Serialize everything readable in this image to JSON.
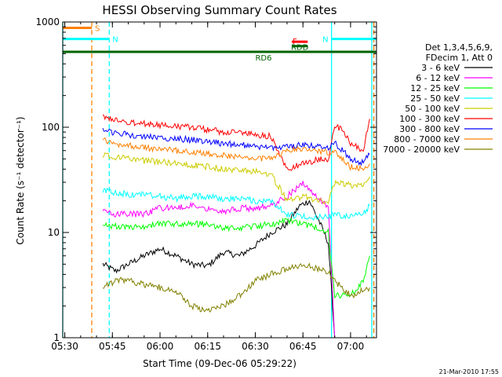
{
  "chart_data": {
    "type": "line",
    "title": "HESSI Observing Summary Count Rates",
    "xlabel": "Start Time (09-Dec-06 05:29:22)",
    "ylabel": "Count Rate (s⁻¹ detector⁻¹)",
    "yscale": "log",
    "xlim": [
      "05:29:22",
      "07:08:10"
    ],
    "ylim": [
      1,
      1000
    ],
    "x_ticks": [
      "05:30",
      "05:45",
      "06:00",
      "06:15",
      "06:30",
      "06:45",
      "07:00"
    ],
    "y_ticks": [
      "1",
      "10",
      "100",
      "1000"
    ],
    "grid": false,
    "legend_position": "right",
    "legend_header": [
      "Det 1,3,4,5,6,9,",
      "FDecim 1, Att 0"
    ],
    "footer_date": "21-Mar-2010 17:55",
    "flags": [
      {
        "label": "S",
        "color": "#ff8000",
        "from": "05:29:22",
        "to": "05:38:30",
        "level": 880
      },
      {
        "label": "N",
        "color": "#00ffff",
        "from": "05:29:22",
        "to": "05:44:00",
        "level": 690
      },
      {
        "label": "N",
        "color": "#00ffff",
        "from": "06:54:00",
        "to": "07:08:10",
        "level": 690
      },
      {
        "label": "F",
        "color": "#ff0000",
        "from": "06:41:30",
        "to": "06:46:30",
        "level": 650
      },
      {
        "label": "RDD",
        "color": "#006400",
        "from": "06:41:30",
        "to": "06:46:30",
        "level": 590
      },
      {
        "label": "RD6",
        "color": "#006400",
        "from": "05:29:22",
        "to": "07:08:10",
        "level": 520
      }
    ],
    "vertical_markers": [
      {
        "time": "05:38:30",
        "color": "#ff8000",
        "style": "dashed"
      },
      {
        "time": "05:44:00",
        "color": "#00ffff",
        "style": "dashed"
      },
      {
        "time": "05:29:22",
        "color": "#00ffff",
        "style": "solid"
      },
      {
        "time": "06:54:00",
        "color": "#00ffff",
        "style": "solid"
      },
      {
        "time": "07:06:40",
        "color": "#00ffff",
        "style": "solid"
      },
      {
        "time": "07:07:20",
        "color": "#ff8000",
        "style": "dashed"
      }
    ],
    "series": [
      {
        "name": "3 - 6 keV",
        "color": "#000000",
        "points": [
          [
            "05:42",
            5
          ],
          [
            "05:46",
            4.3
          ],
          [
            "05:50",
            5
          ],
          [
            "05:55",
            6
          ],
          [
            "06:00",
            7
          ],
          [
            "06:05",
            6
          ],
          [
            "06:10",
            5
          ],
          [
            "06:15",
            4.8
          ],
          [
            "06:20",
            6.5
          ],
          [
            "06:25",
            6
          ],
          [
            "06:30",
            7.5
          ],
          [
            "06:35",
            10
          ],
          [
            "06:40",
            12
          ],
          [
            "06:44",
            18
          ],
          [
            "06:47",
            20
          ],
          [
            "06:50",
            13
          ],
          [
            "06:53",
            8
          ],
          [
            "06:55",
            1
          ]
        ]
      },
      {
        "name": "6 - 12 keV",
        "color": "#ff00ff",
        "points": [
          [
            "05:42",
            16
          ],
          [
            "05:46",
            15
          ],
          [
            "05:50",
            15
          ],
          [
            "05:55",
            15
          ],
          [
            "06:00",
            17
          ],
          [
            "06:05",
            17
          ],
          [
            "06:10",
            18
          ],
          [
            "06:15",
            17
          ],
          [
            "06:20",
            16
          ],
          [
            "06:25",
            17
          ],
          [
            "06:30",
            17
          ],
          [
            "06:35",
            18
          ],
          [
            "06:40",
            22
          ],
          [
            "06:45",
            30
          ],
          [
            "06:48",
            23
          ],
          [
            "06:51",
            20
          ],
          [
            "06:53",
            18
          ],
          [
            "06:55",
            1
          ]
        ]
      },
      {
        "name": "12 - 25 keV",
        "color": "#00ff00",
        "points": [
          [
            "05:42",
            12
          ],
          [
            "05:46",
            11.5
          ],
          [
            "05:50",
            11
          ],
          [
            "05:55",
            11.5
          ],
          [
            "06:00",
            12
          ],
          [
            "06:05",
            12
          ],
          [
            "06:10",
            12
          ],
          [
            "06:15",
            12
          ],
          [
            "06:20",
            11
          ],
          [
            "06:25",
            11
          ],
          [
            "06:30",
            11.5
          ],
          [
            "06:35",
            12
          ],
          [
            "06:40",
            13
          ],
          [
            "06:45",
            12
          ],
          [
            "06:50",
            11
          ],
          [
            "06:53",
            10
          ],
          [
            "06:55",
            2.5
          ],
          [
            "07:00",
            2.5
          ],
          [
            "07:04",
            3.5
          ],
          [
            "07:06",
            6
          ]
        ]
      },
      {
        "name": "25 - 50 keV",
        "color": "#00ffff",
        "points": [
          [
            "05:42",
            25
          ],
          [
            "05:46",
            24
          ],
          [
            "05:50",
            23
          ],
          [
            "05:55",
            23
          ],
          [
            "06:00",
            22
          ],
          [
            "06:05",
            21
          ],
          [
            "06:10",
            22
          ],
          [
            "06:15",
            22
          ],
          [
            "06:20",
            21
          ],
          [
            "06:25",
            21
          ],
          [
            "06:30",
            20
          ],
          [
            "06:35",
            20
          ],
          [
            "06:40",
            15
          ],
          [
            "06:45",
            14
          ],
          [
            "06:50",
            14
          ],
          [
            "06:53",
            14
          ],
          [
            "06:55",
            15
          ],
          [
            "07:00",
            14
          ],
          [
            "07:04",
            15
          ],
          [
            "07:06",
            18
          ]
        ]
      },
      {
        "name": "50 - 100 keV",
        "color": "#cccc00",
        "points": [
          [
            "05:42",
            55
          ],
          [
            "05:46",
            52
          ],
          [
            "05:50",
            50
          ],
          [
            "05:55",
            48
          ],
          [
            "06:00",
            47
          ],
          [
            "06:05",
            45
          ],
          [
            "06:10",
            44
          ],
          [
            "06:15",
            42
          ],
          [
            "06:20",
            40
          ],
          [
            "06:25",
            39
          ],
          [
            "06:30",
            38
          ],
          [
            "06:35",
            36
          ],
          [
            "06:40",
            20
          ],
          [
            "06:45",
            22
          ],
          [
            "06:50",
            20
          ],
          [
            "06:53",
            20
          ],
          [
            "06:55",
            30
          ],
          [
            "07:00",
            28
          ],
          [
            "07:04",
            29
          ],
          [
            "07:06",
            34
          ]
        ]
      },
      {
        "name": "100 - 300 keV",
        "color": "#ff0000",
        "points": [
          [
            "05:42",
            125
          ],
          [
            "05:46",
            115
          ],
          [
            "05:50",
            112
          ],
          [
            "05:55",
            108
          ],
          [
            "06:00",
            105
          ],
          [
            "06:05",
            102
          ],
          [
            "06:10",
            100
          ],
          [
            "06:15",
            95
          ],
          [
            "06:20",
            90
          ],
          [
            "06:25",
            88
          ],
          [
            "06:30",
            85
          ],
          [
            "06:35",
            82
          ],
          [
            "06:40",
            40
          ],
          [
            "06:45",
            45
          ],
          [
            "06:50",
            50
          ],
          [
            "06:53",
            48
          ],
          [
            "06:55",
            105
          ],
          [
            "06:58",
            90
          ],
          [
            "07:00",
            70
          ],
          [
            "07:04",
            60
          ],
          [
            "07:06",
            120
          ]
        ]
      },
      {
        "name": "300 - 800 keV",
        "color": "#0000ff",
        "points": [
          [
            "05:42",
            95
          ],
          [
            "05:46",
            88
          ],
          [
            "05:50",
            85
          ],
          [
            "05:55",
            82
          ],
          [
            "06:00",
            80
          ],
          [
            "06:05",
            78
          ],
          [
            "06:10",
            76
          ],
          [
            "06:15",
            74
          ],
          [
            "06:20",
            70
          ],
          [
            "06:25",
            68
          ],
          [
            "06:30",
            66
          ],
          [
            "06:35",
            64
          ],
          [
            "06:40",
            65
          ],
          [
            "06:45",
            68
          ],
          [
            "06:50",
            66
          ],
          [
            "06:53",
            64
          ],
          [
            "06:55",
            72
          ],
          [
            "07:00",
            50
          ],
          [
            "07:04",
            46
          ],
          [
            "07:06",
            55
          ]
        ]
      },
      {
        "name": "800 - 7000 keV",
        "color": "#ff8000",
        "points": [
          [
            "05:42",
            75
          ],
          [
            "05:46",
            70
          ],
          [
            "05:50",
            67
          ],
          [
            "05:55",
            64
          ],
          [
            "06:00",
            62
          ],
          [
            "06:05",
            60
          ],
          [
            "06:10",
            58
          ],
          [
            "06:15",
            56
          ],
          [
            "06:20",
            54
          ],
          [
            "06:25",
            52
          ],
          [
            "06:30",
            51
          ],
          [
            "06:35",
            50
          ],
          [
            "06:40",
            60
          ],
          [
            "06:45",
            62
          ],
          [
            "06:50",
            60
          ],
          [
            "06:53",
            58
          ],
          [
            "06:55",
            60
          ],
          [
            "07:00",
            42
          ],
          [
            "07:04",
            40
          ],
          [
            "07:06",
            45
          ]
        ]
      },
      {
        "name": "7000 - 20000 keV",
        "color": "#808000",
        "points": [
          [
            "05:42",
            3
          ],
          [
            "05:46",
            3.5
          ],
          [
            "05:50",
            3.5
          ],
          [
            "05:55",
            3.2
          ],
          [
            "06:00",
            3
          ],
          [
            "06:05",
            2.8
          ],
          [
            "06:10",
            2
          ],
          [
            "06:15",
            1.8
          ],
          [
            "06:20",
            2
          ],
          [
            "06:25",
            2.5
          ],
          [
            "06:30",
            3.5
          ],
          [
            "06:35",
            4
          ],
          [
            "06:40",
            4.5
          ],
          [
            "06:45",
            5
          ],
          [
            "06:50",
            4.5
          ],
          [
            "06:53",
            4.2
          ],
          [
            "06:55",
            3.5
          ],
          [
            "07:00",
            2.5
          ],
          [
            "07:04",
            2.8
          ],
          [
            "07:06",
            3
          ]
        ]
      }
    ]
  }
}
